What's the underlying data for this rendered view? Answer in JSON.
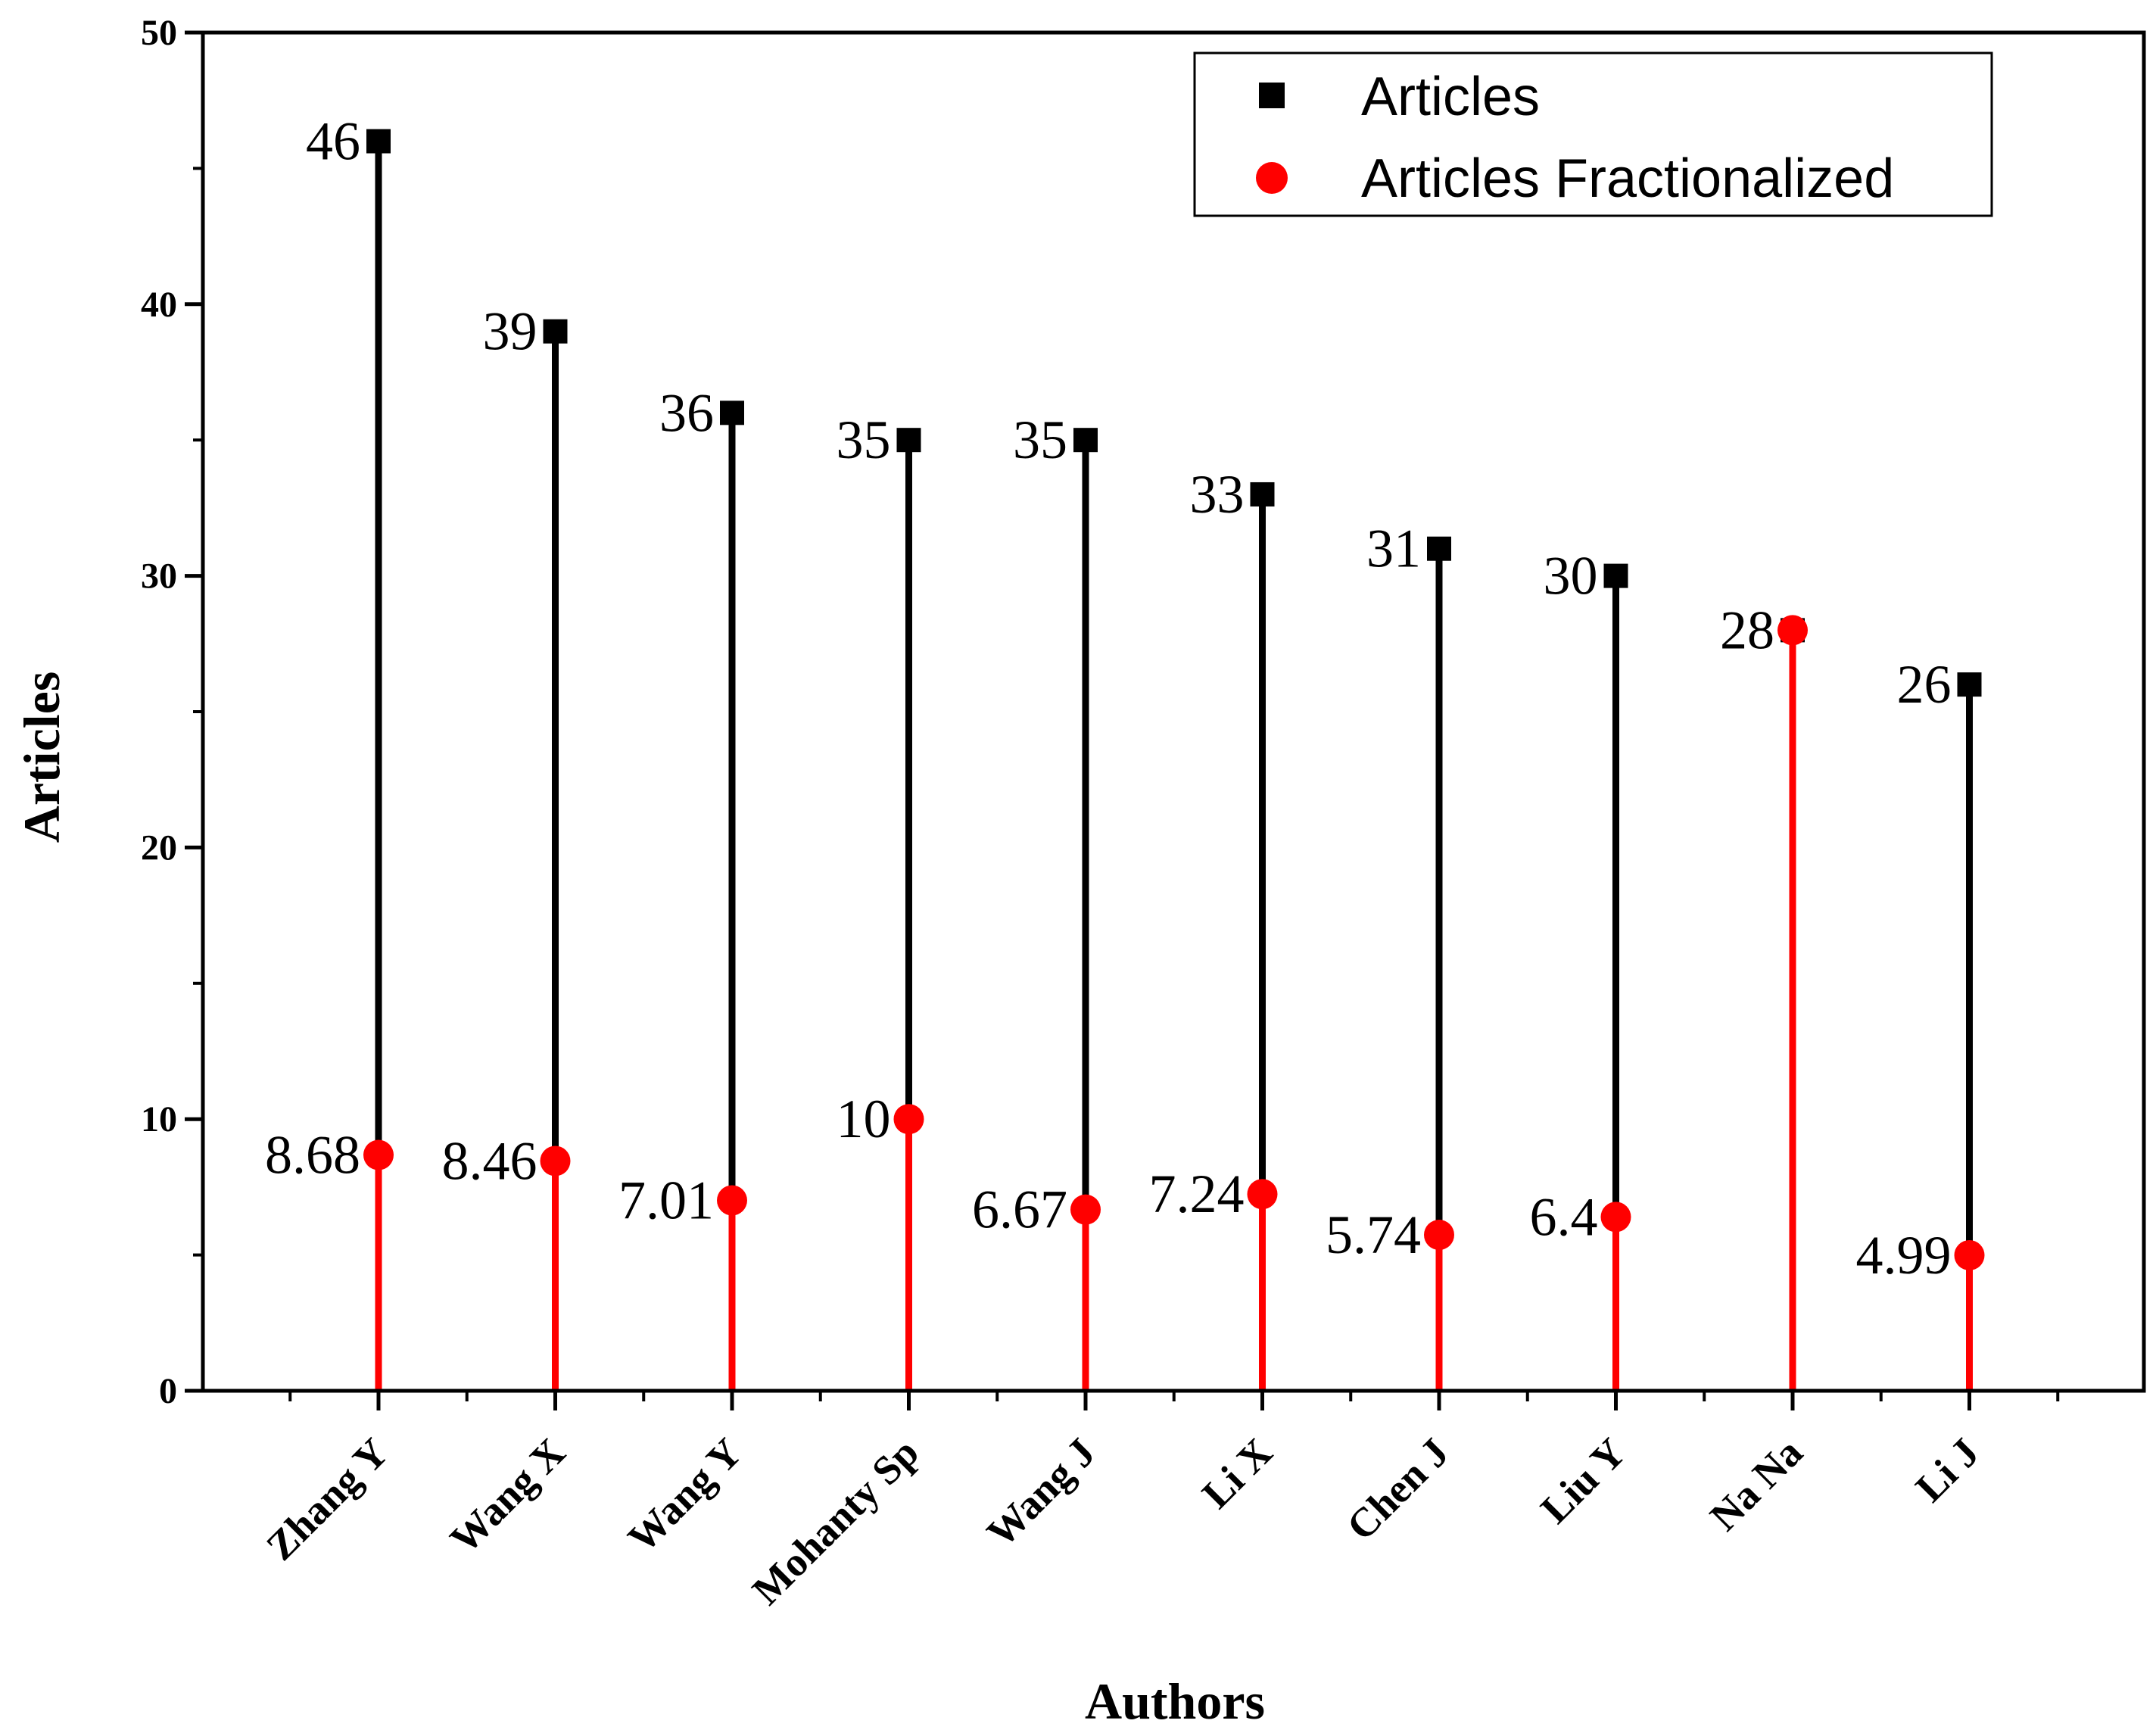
{
  "chart_data": {
    "type": "scatter",
    "style": "drop-lines",
    "categories": [
      "Zhang Y",
      "Wang X",
      "Wang Y",
      "Mohanty Sp",
      "Wang J",
      "Li X",
      "Chen J",
      "Liu Y",
      "Na Na",
      "Li J"
    ],
    "series": [
      {
        "name": "Articles",
        "marker": "square",
        "color": "#000000",
        "values": [
          46,
          39,
          36,
          35,
          35,
          33,
          31,
          30,
          28,
          26
        ],
        "labels": [
          "46",
          "39",
          "36",
          "35",
          "35",
          "33",
          "31",
          "30",
          "28",
          "26"
        ]
      },
      {
        "name": "Articles Fractionalized",
        "marker": "circle",
        "color": "#ff0000",
        "values": [
          8.68,
          8.46,
          7.01,
          10,
          6.67,
          7.24,
          5.74,
          6.4,
          28,
          4.99
        ],
        "labels": [
          "8.68",
          "8.46",
          "7.01",
          "10",
          "6.67",
          "7.24",
          "5.74",
          "6.4",
          "",
          "4.99"
        ]
      }
    ],
    "xlabel": "Authors",
    "ylabel": "Articles",
    "ylim": [
      0,
      50
    ],
    "yticks": [
      "0",
      "10",
      "20",
      "30",
      "40",
      "50"
    ],
    "legend_position": "top-right",
    "grid": false
  }
}
